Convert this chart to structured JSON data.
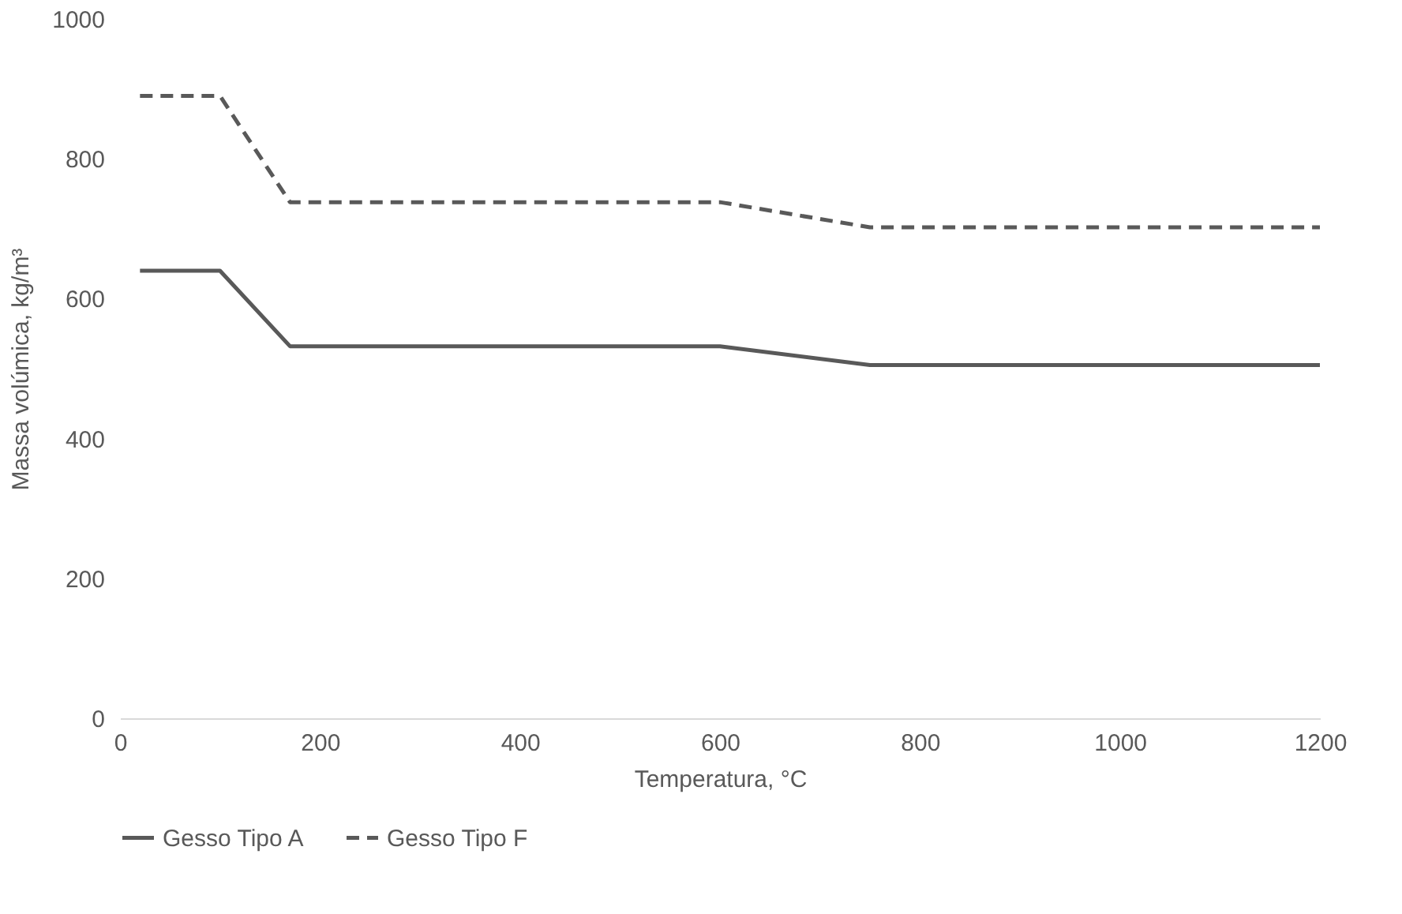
{
  "chart_data": {
    "type": "line",
    "xlabel": "Temperatura, °C",
    "ylabel": "Massa volúmica, kg/m³",
    "xlim": [
      0,
      1200
    ],
    "xticks": [
      0,
      200,
      400,
      600,
      800,
      1000,
      1200
    ],
    "ylim": [
      0,
      1000
    ],
    "yticks": [
      0,
      200,
      400,
      600,
      800,
      1000
    ],
    "grid": false,
    "legend": "bottom",
    "marker": "none",
    "series": [
      {
        "name": "Gesso Tipo A",
        "color": "#595959",
        "line_style": "solid",
        "x": [
          20,
          100,
          170,
          600,
          750,
          1200
        ],
        "values": [
          640,
          640,
          532,
          532,
          505,
          505
        ]
      },
      {
        "name": "Gesso Tipo F",
        "color": "#595959",
        "line_style": "dashed",
        "x": [
          20,
          100,
          170,
          600,
          750,
          1200
        ],
        "values": [
          890,
          890,
          738,
          738,
          702,
          702
        ]
      }
    ]
  }
}
